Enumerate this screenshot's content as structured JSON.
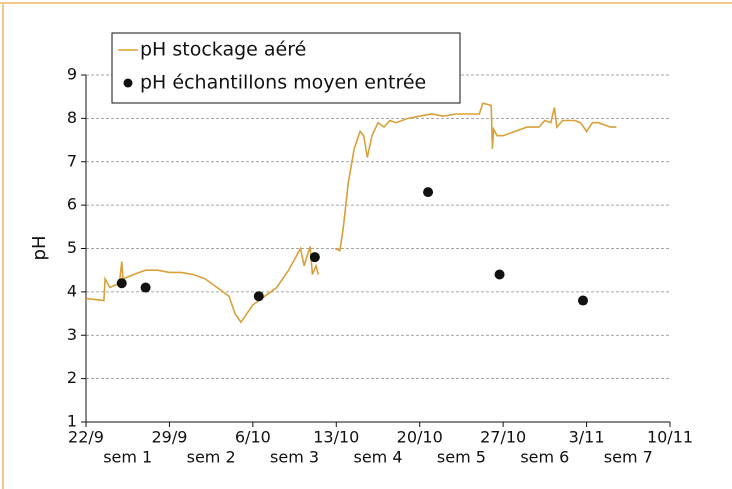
{
  "chart_data": {
    "type": "line",
    "y_label": "pH",
    "xlim": [
      0,
      49
    ],
    "ylim": [
      1,
      9
    ],
    "yticks": [
      1,
      2,
      3,
      4,
      5,
      6,
      7,
      8,
      9
    ],
    "xticks": [
      {
        "value": 0,
        "label": "22/9"
      },
      {
        "value": 7,
        "label": "29/9"
      },
      {
        "value": 14,
        "label": "6/10"
      },
      {
        "value": 21,
        "label": "13/10"
      },
      {
        "value": 28,
        "label": "20/10"
      },
      {
        "value": 35,
        "label": "27/10"
      },
      {
        "value": 42,
        "label": "3/11"
      },
      {
        "value": 49,
        "label": "10/11"
      }
    ],
    "week_labels": [
      "sem 1",
      "sem 2",
      "sem 3",
      "sem 4",
      "sem 5",
      "sem 6",
      "sem 7"
    ],
    "grid": true,
    "series": [
      {
        "name": "pH stockage aéré",
        "type": "line",
        "color": "#d9a03a",
        "x": [
          0,
          1.5,
          1.6,
          2,
          2.8,
          3,
          3.1,
          4,
          5,
          6,
          7,
          8,
          9,
          10,
          11,
          12,
          12.5,
          13,
          13.5,
          14,
          15,
          16,
          17,
          18,
          18.3,
          18.8,
          19,
          19.3,
          19.5,
          20,
          20.9,
          21.3,
          21.6,
          22,
          22.5,
          23,
          23.3,
          23.6,
          24,
          24.5,
          25,
          25.5,
          26,
          27,
          28,
          29,
          30,
          31,
          32,
          33,
          33.3,
          34,
          34.1,
          34.2,
          34.5,
          35,
          36,
          37,
          38,
          38.5,
          39,
          39.3,
          39.5,
          40,
          41,
          41.5,
          42,
          42.5,
          43,
          44,
          44.5
        ],
        "values": [
          3.85,
          3.8,
          4.3,
          4.1,
          4.2,
          4.7,
          4.3,
          4.4,
          4.5,
          4.5,
          4.45,
          4.45,
          4.4,
          4.3,
          4.1,
          3.9,
          3.5,
          3.3,
          3.5,
          3.7,
          3.9,
          4.1,
          4.5,
          5.0,
          4.6,
          5.05,
          4.4,
          4.6,
          4.4,
          null,
          5.0,
          4.95,
          5.5,
          6.5,
          7.3,
          7.7,
          7.6,
          7.1,
          7.6,
          7.9,
          7.8,
          7.95,
          7.9,
          8.0,
          8.05,
          8.1,
          8.05,
          8.1,
          8.1,
          8.1,
          8.35,
          8.3,
          7.3,
          7.75,
          7.6,
          7.6,
          7.7,
          7.8,
          7.8,
          7.95,
          7.9,
          8.25,
          7.8,
          7.95,
          7.95,
          7.9,
          7.7,
          7.9,
          7.9,
          7.8,
          7.8
        ]
      },
      {
        "name": "pH échantillons moyen entrée",
        "type": "scatter",
        "color": "#111111",
        "x": [
          3,
          5,
          14.5,
          19.2,
          28.7,
          34.7,
          41.7
        ],
        "values": [
          4.2,
          4.1,
          3.9,
          4.8,
          6.3,
          4.4,
          3.8
        ]
      }
    ]
  }
}
